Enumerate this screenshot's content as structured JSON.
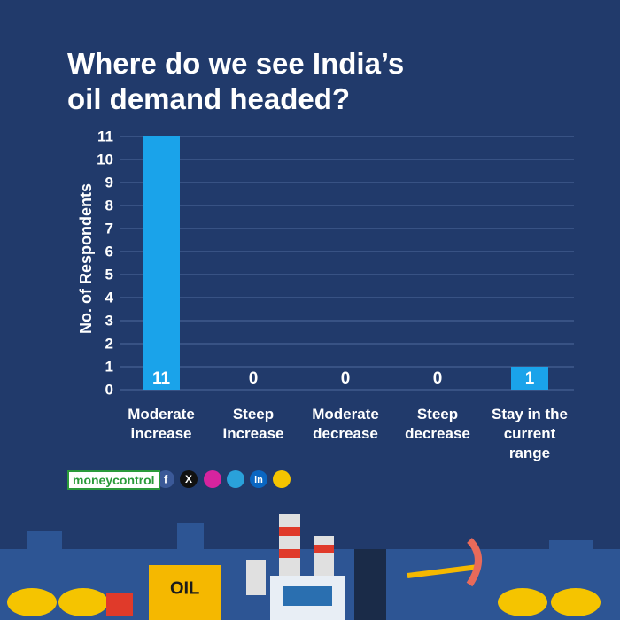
{
  "chart_data": {
    "type": "bar",
    "title": "Where do we see India’s oil demand headed?",
    "y_label": "No. of Respondents",
    "categories": [
      "Moderate increase",
      "Steep Increase",
      "Moderate decrease",
      "Steep decrease",
      "Stay in the current range"
    ],
    "values": [
      11,
      0,
      0,
      0,
      1
    ],
    "color": "#1aa3ea",
    "ylim": [
      0,
      11
    ],
    "yticks": [
      0,
      1,
      2,
      3,
      4,
      5,
      6,
      7,
      8,
      9,
      10,
      11
    ],
    "grid": true
  },
  "brand": "moneycontrol",
  "social": [
    "f",
    "X",
    "in"
  ],
  "illustration_label": "OIL"
}
